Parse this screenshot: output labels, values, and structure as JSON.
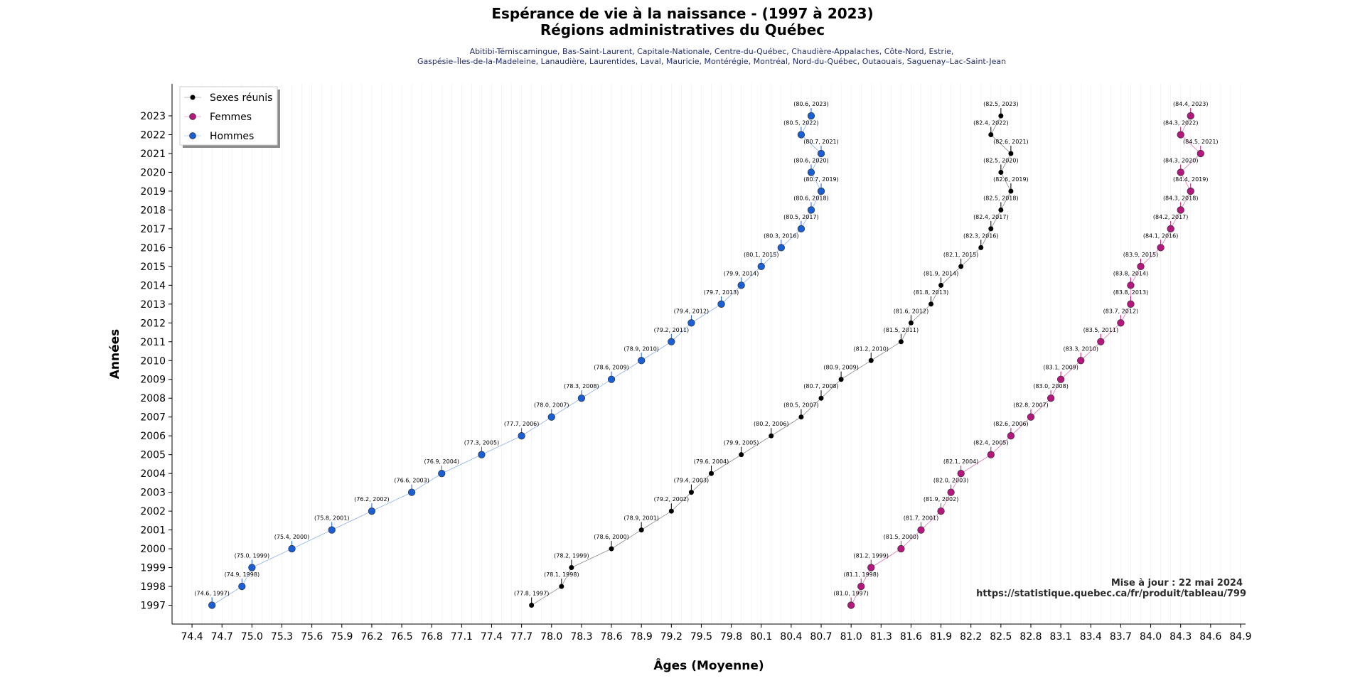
{
  "chart_data": {
    "type": "scatter",
    "title_line1": "Espérance de vie à la naissance - (1997 à 2023)",
    "title_line2": "Régions administratives du Québec",
    "subtitle_line1": "Abitibi-Témiscamingue, Bas-Saint-Laurent, Capitale-Nationale, Centre-du-Québec, Chaudière-Appalaches, Côte-Nord, Estrie,",
    "subtitle_line2": "Gaspésie–Îles-de-la-Madeleine, Lanaudière, Laurentides, Laval, Mauricie, Montérégie, Montréal, Nord-du-Québec, Outaouais, Saguenay–Lac-Saint-Jean",
    "xlabel": "Âges (Moyenne)",
    "ylabel": "Années",
    "xlim": [
      74.2,
      84.95
    ],
    "ylim": [
      1996.0,
      2024.7
    ],
    "x_ticks": [
      "74.4",
      "74.7",
      "75.0",
      "75.3",
      "75.6",
      "75.9",
      "76.2",
      "76.5",
      "76.8",
      "77.1",
      "77.4",
      "77.7",
      "78.0",
      "78.3",
      "78.6",
      "78.9",
      "79.2",
      "79.5",
      "79.8",
      "80.1",
      "80.4",
      "80.7",
      "81.0",
      "81.3",
      "81.6",
      "81.9",
      "82.2",
      "82.5",
      "82.8",
      "83.1",
      "83.4",
      "83.7",
      "84.0",
      "84.3",
      "84.6",
      "84.9"
    ],
    "years": [
      1997,
      1998,
      1999,
      2000,
      2001,
      2002,
      2003,
      2004,
      2005,
      2006,
      2007,
      2008,
      2009,
      2010,
      2011,
      2012,
      2013,
      2014,
      2015,
      2016,
      2017,
      2018,
      2019,
      2020,
      2021,
      2022,
      2023
    ],
    "grid": "vertical",
    "legend_position": "top-left",
    "series": [
      {
        "name": "Sexes réunis",
        "color": "#000000",
        "line_color": "#7a7a7a",
        "marker": "small-dot",
        "values": [
          77.8,
          78.1,
          78.2,
          78.6,
          78.9,
          79.2,
          79.4,
          79.6,
          79.9,
          80.2,
          80.5,
          80.7,
          80.9,
          81.2,
          81.5,
          81.6,
          81.8,
          81.9,
          82.1,
          82.3,
          82.4,
          82.5,
          82.6,
          82.5,
          82.6,
          82.4,
          82.5
        ],
        "labels": [
          "(77.8, 1997)",
          "(78.1, 1998)",
          "(78.2, 1999)",
          "(78.6, 2000)",
          "(78.9, 2001)",
          "(79.2, 2002)",
          "(79.4, 2003)",
          "(79.6, 2004)",
          "(79.9, 2005)",
          "(80.2, 2006)",
          "(80.5, 2007)",
          "(80.7, 2008)",
          "(80.9, 2009)",
          "(81.2, 2010)",
          "(81.5, 2011)",
          "(81.6, 2012)",
          "(81.8, 2013)",
          "(81.9, 2014)",
          "(82.1, 2015)",
          "(82.3, 2016)",
          "(82.4, 2017)",
          "(82.5, 2018)",
          "(82.6, 2019)",
          "(82.5, 2020)",
          "(82.6, 2021)",
          "(82.4, 2022)",
          "(82.5, 2023)"
        ]
      },
      {
        "name": "Femmes",
        "color": "#b5177f",
        "line_color": "#d46aab",
        "marker": "dot",
        "values": [
          81.0,
          81.1,
          81.2,
          81.5,
          81.7,
          81.9,
          82.0,
          82.1,
          82.4,
          82.6,
          82.8,
          83.0,
          83.1,
          83.3,
          83.5,
          83.7,
          83.8,
          83.8,
          83.9,
          84.1,
          84.2,
          84.3,
          84.4,
          84.3,
          84.5,
          84.3,
          84.4
        ],
        "labels": [
          "(81.0, 1997)",
          "(81.1, 1998)",
          "(81.2, 1999)",
          "(81.5, 2000)",
          "(81.7, 2001)",
          "(81.9, 2002)",
          "(82.0, 2003)",
          "(82.1, 2004)",
          "(82.4, 2005)",
          "(82.6, 2006)",
          "(82.8, 2007)",
          "(83.0, 2008)",
          "(83.1, 2009)",
          "(83.3, 2010)",
          "(83.5, 2011)",
          "(83.7, 2012)",
          "(83.8, 2013)",
          "(83.8, 2014)",
          "(83.9, 2015)",
          "(84.1, 2016)",
          "(84.2, 2017)",
          "(84.3, 2018)",
          "(84.4, 2019)",
          "(84.3, 2020)",
          "(84.5, 2021)",
          "(84.3, 2022)",
          "(84.4, 2023)"
        ]
      },
      {
        "name": "Hommes",
        "color": "#1a5fd6",
        "line_color": "#7ea6ee",
        "marker": "dot",
        "values": [
          74.6,
          74.9,
          75.0,
          75.4,
          75.8,
          76.2,
          76.6,
          76.9,
          77.3,
          77.7,
          78.0,
          78.3,
          78.6,
          78.9,
          79.2,
          79.4,
          79.7,
          79.9,
          80.1,
          80.3,
          80.5,
          80.6,
          80.7,
          80.6,
          80.7,
          80.5,
          80.6
        ],
        "labels": [
          "(74.6, 1997)",
          "(74.9, 1998)",
          "(75.0, 1999)",
          "(75.4, 2000)",
          "(75.8, 2001)",
          "(76.2, 2002)",
          "(76.6, 2003)",
          "(76.9, 2004)",
          "(77.3, 2005)",
          "(77.7, 2006)",
          "(78.0, 2007)",
          "(78.3, 2008)",
          "(78.6, 2009)",
          "(78.9, 2010)",
          "(79.2, 2011)",
          "(79.4, 2012)",
          "(79.7, 2013)",
          "(79.9, 2014)",
          "(80.1, 2015)",
          "(80.3, 2016)",
          "(80.5, 2017)",
          "(80.6, 2018)",
          "(80.7, 2019)",
          "(80.6, 2020)",
          "(80.7, 2021)",
          "(80.5, 2022)",
          "(80.6, 2023)"
        ]
      }
    ],
    "note_line1": "Mise à jour : 22 mai 2024",
    "note_line2": "https://statistique.quebec.ca/fr/produit/tableau/799"
  }
}
